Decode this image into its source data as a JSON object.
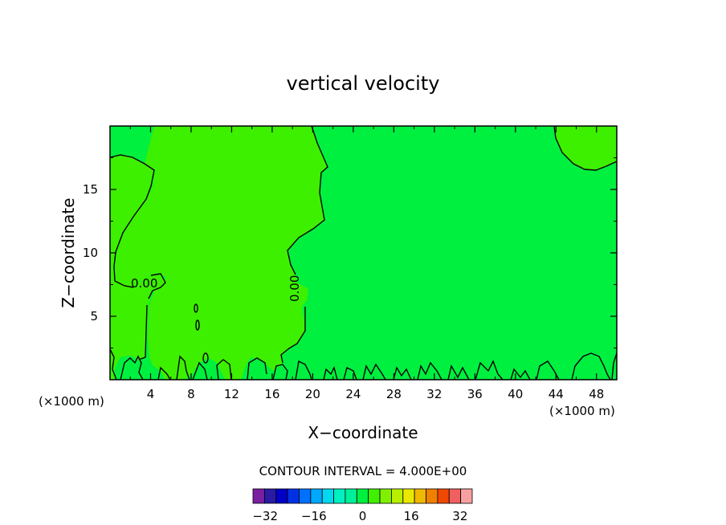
{
  "chart_data": {
    "type": "contour",
    "title": "vertical velocity",
    "xlabel": "X−coordinate",
    "ylabel": "Z−coordinate",
    "x_unit": "(×1000 m)",
    "z_unit": "(×1000 m)",
    "xlim": [
      0,
      50
    ],
    "ylim": [
      0,
      20
    ],
    "xticks": [
      4,
      8,
      12,
      16,
      20,
      24,
      28,
      32,
      36,
      40,
      44,
      48
    ],
    "yticks": [
      5,
      10,
      15
    ],
    "contour_interval_text": "CONTOUR INTERVAL = 4.000E+00",
    "contour_labels": [
      "0.00",
      "0.00"
    ],
    "colorbar": {
      "levels": [
        -36,
        -32,
        -28,
        -24,
        -20,
        -16,
        -12,
        -8,
        -4,
        0,
        4,
        8,
        12,
        16,
        20,
        24,
        28,
        32,
        36
      ],
      "tick_values": [
        -32,
        -16,
        0,
        16,
        32
      ],
      "tick_labels": [
        "−32",
        "−16",
        "0",
        "16",
        "32"
      ],
      "colors": [
        "#7a1fa2",
        "#2a1aa6",
        "#0000c8",
        "#0030e6",
        "#0070ff",
        "#00a8ff",
        "#00d8f0",
        "#00f0c0",
        "#00f098",
        "#00f040",
        "#40f000",
        "#80f000",
        "#b8f000",
        "#e8e800",
        "#f0b800",
        "#f08000",
        "#f04800",
        "#f06060",
        "#f8a0a0"
      ]
    },
    "fill_colors": {
      "positive": "#3df000",
      "zero": "#00f040"
    }
  }
}
